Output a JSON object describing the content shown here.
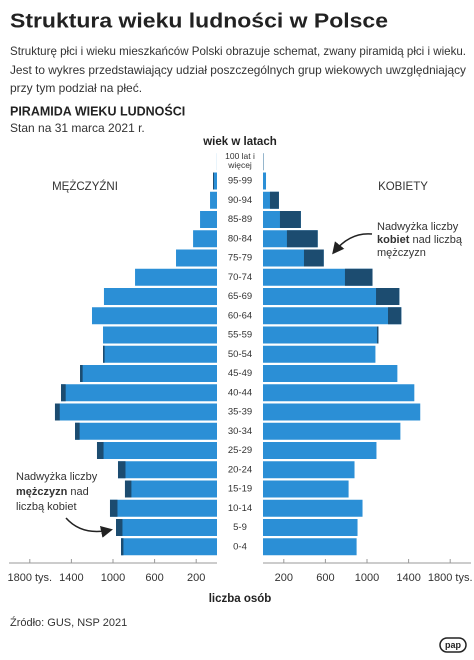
{
  "chart_data": {
    "type": "pyramid",
    "title": "Struktura wieku ludności w Polsce",
    "description": [
      "Strukturę płci i wieku mieszkańców Polski obrazuje schemat, zwany piramidą płci i wieku.",
      "Jest to wykres przedstawiający udział poszczególnych grup wiekowych uwzględniający",
      "przy tym podział na płeć."
    ],
    "subtitle": "PIRAMIDA WIEKU LUDNOŚCI",
    "date_note": "Stan na 31 marca 2021 r.",
    "y_label": "wiek w latach",
    "x_label": "liczba osób",
    "categories": [
      "100 lat i więcej",
      "95-99",
      "90-94",
      "85-89",
      "80-84",
      "75-79",
      "70-74",
      "65-69",
      "60-64",
      "55-59",
      "50-54",
      "45-49",
      "40-44",
      "35-39",
      "30-34",
      "25-29",
      "20-24",
      "15-19",
      "10-14",
      "5-9",
      "0-4"
    ],
    "series": [
      {
        "name": "MĘŻCZYŹNI",
        "side": "left",
        "values": [
          1,
          38,
          67,
          163,
          230,
          394,
          788,
          1087,
          1202,
          1096,
          1096,
          1317,
          1500,
          1558,
          1365,
          1154,
          952,
          885,
          1029,
          971,
          923
        ]
      },
      {
        "name": "KOBIETY",
        "side": "right",
        "values": [
          4,
          29,
          153,
          364,
          526,
          584,
          1053,
          1311,
          1330,
          1110,
          1081,
          1292,
          1455,
          1512,
          1321,
          1091,
          880,
          823,
          957,
          909,
          900
        ]
      }
    ],
    "colors": {
      "base": "#2b8fd6",
      "surplus": "#1c4c70"
    },
    "xlim": [
      0,
      2000
    ],
    "xticks": [
      200,
      600,
      1000,
      1400,
      {
        "value": 1800,
        "label": "1800 tys."
      }
    ],
    "annotations": {
      "women": [
        "Nadwyżka liczby",
        "kobiet",
        "nad liczbą",
        "mężczyzn"
      ],
      "men": [
        "Nadwyżka liczby",
        "mężczyzn",
        "nad",
        "liczbą kobiet"
      ]
    },
    "source": "Źródło: GUS, NSP 2021",
    "logo": "pap"
  }
}
